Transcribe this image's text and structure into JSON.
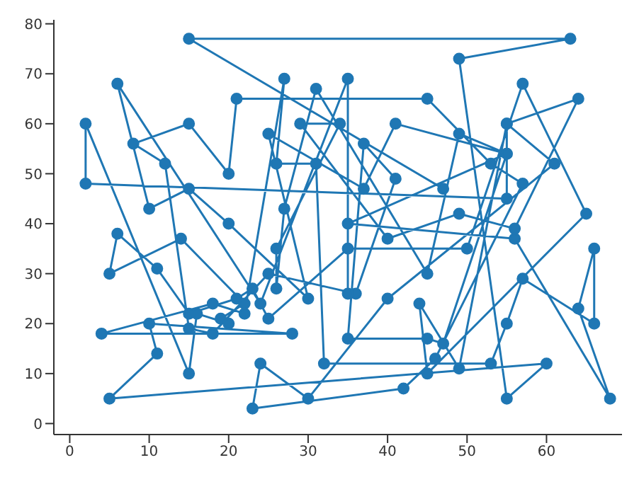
{
  "chart_data": {
    "type": "line",
    "marker": "circle",
    "xlim": [
      -2,
      69.5
    ],
    "ylim": [
      -2.2,
      80.8
    ],
    "xticks": [
      0,
      10,
      20,
      30,
      40,
      50,
      60
    ],
    "yticks": [
      0,
      10,
      20,
      30,
      40,
      50,
      60,
      70,
      80
    ],
    "series": [
      {
        "color": "#1f77b4",
        "x": [
          47,
          15,
          63,
          49,
          55,
          60,
          5,
          11,
          10,
          28,
          4,
          18,
          22,
          27,
          26,
          31,
          32,
          53,
          55,
          57,
          66,
          66,
          64,
          68,
          56,
          35,
          55,
          47,
          45,
          35,
          37,
          41,
          36,
          25,
          18,
          15,
          12,
          8,
          15,
          20,
          21,
          45,
          53,
          57,
          46,
          42,
          23,
          24,
          30,
          40,
          61,
          55,
          49,
          44,
          45,
          65,
          57,
          50,
          35,
          25,
          23,
          21,
          15,
          11,
          6,
          5,
          14,
          22,
          19,
          20,
          16,
          15,
          2,
          2,
          55,
          55,
          64,
          56,
          49,
          40,
          29,
          34,
          26,
          26,
          27,
          31,
          45,
          49,
          55,
          41,
          37,
          25,
          30,
          20,
          15,
          10,
          6,
          24,
          35,
          35
        ],
        "values": [
          47,
          77,
          77,
          73,
          5,
          12,
          5,
          14,
          20,
          18,
          18,
          24,
          22,
          69,
          52,
          52,
          12,
          12,
          20,
          29,
          20,
          35,
          23,
          5,
          37,
          40,
          54,
          16,
          17,
          17,
          56,
          49,
          26,
          30,
          18,
          19,
          52,
          56,
          60,
          50,
          65,
          65,
          52,
          48,
          13,
          7,
          3,
          12,
          5,
          25,
          52,
          60,
          11,
          24,
          10,
          42,
          68,
          35,
          35,
          21,
          27,
          25,
          22,
          31,
          38,
          30,
          37,
          24,
          21,
          20,
          22,
          10,
          60,
          48,
          45,
          60,
          65,
          39,
          42,
          37,
          60,
          60,
          35,
          27,
          43,
          67,
          30,
          58,
          54,
          60,
          47,
          58,
          25,
          40,
          47,
          43,
          68,
          24,
          69,
          26
        ]
      }
    ]
  }
}
